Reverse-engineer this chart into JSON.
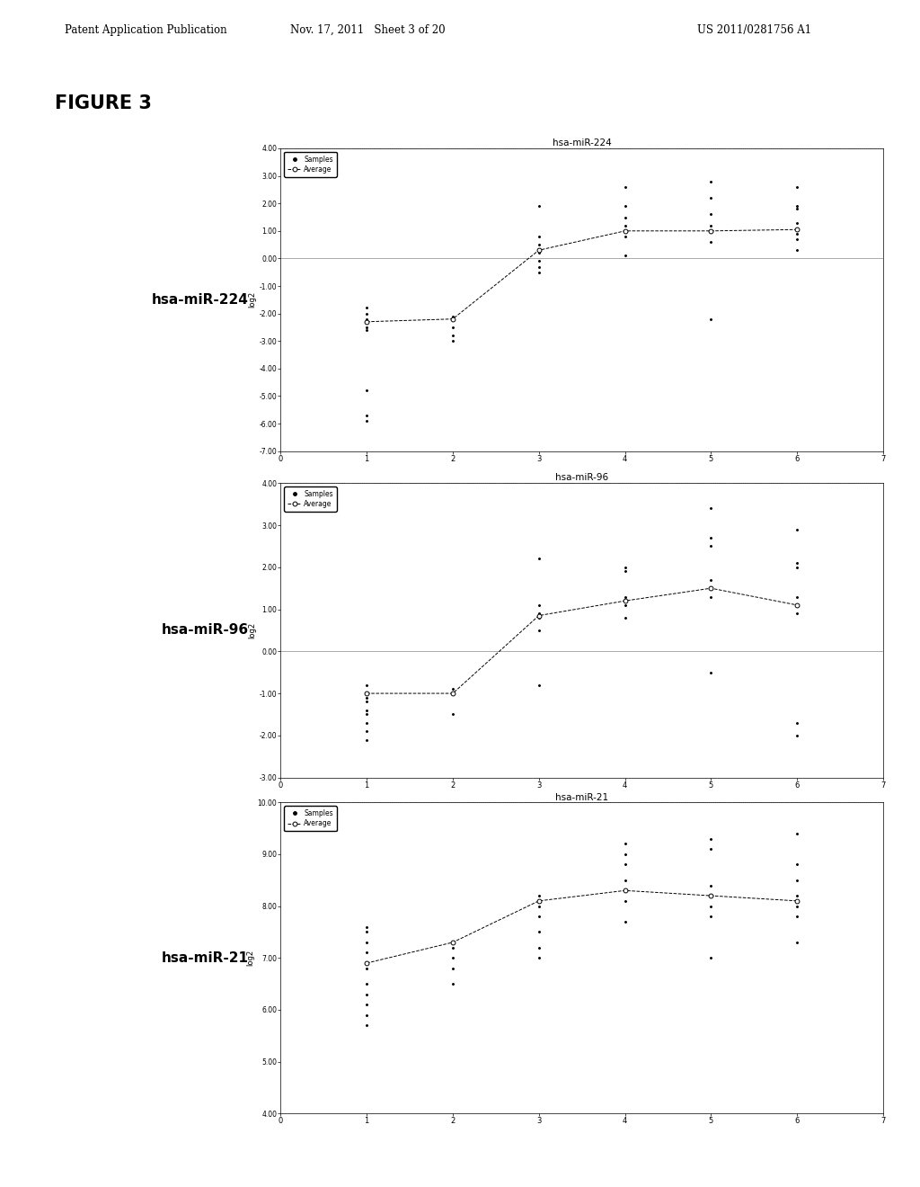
{
  "header_left": "Patent Application Publication",
  "header_middle": "Nov. 17, 2011   Sheet 3 of 20",
  "header_right": "US 2011/0281756 A1",
  "figure_label": "FIGURE 3",
  "background_color": "#ffffff",
  "charts": [
    {
      "title": "hsa-miR-224",
      "label": "hsa-miR-224",
      "ylabel": "log2",
      "ylim": [
        -7.0,
        4.0
      ],
      "yticks": [
        4.0,
        3.0,
        2.0,
        1.0,
        0.0,
        -1.0,
        -2.0,
        -3.0,
        -4.0,
        -5.0,
        -6.0,
        -7.0
      ],
      "ytick_labels": [
        "4.00",
        "3.00",
        "2.00",
        "1.00",
        "0.00",
        "-1.00",
        "-2.00",
        "-3.00",
        "-4.00",
        "-5.00",
        "-6.00",
        "-7.00"
      ],
      "xlim": [
        0,
        7
      ],
      "xticks": [
        0,
        1,
        2,
        3,
        4,
        5,
        6,
        7
      ],
      "avg_x": [
        1,
        2,
        3,
        4,
        5,
        6
      ],
      "avg_y": [
        -2.3,
        -2.2,
        0.3,
        1.0,
        1.0,
        1.05
      ],
      "scatter_data": [
        [
          1,
          -1.8
        ],
        [
          1,
          -2.0
        ],
        [
          1,
          -2.2
        ],
        [
          1,
          -2.3
        ],
        [
          1,
          -2.5
        ],
        [
          1,
          -2.6
        ],
        [
          1,
          -4.8
        ],
        [
          1,
          -5.7
        ],
        [
          1,
          -5.9
        ],
        [
          2,
          -2.1
        ],
        [
          2,
          -2.5
        ],
        [
          2,
          -3.0
        ],
        [
          2,
          -2.8
        ],
        [
          3,
          0.5
        ],
        [
          3,
          0.2
        ],
        [
          3,
          -0.1
        ],
        [
          3,
          -0.3
        ],
        [
          3,
          0.8
        ],
        [
          3,
          1.9
        ],
        [
          3,
          -0.5
        ],
        [
          4,
          0.8
        ],
        [
          4,
          1.0
        ],
        [
          4,
          1.2
        ],
        [
          4,
          1.5
        ],
        [
          4,
          2.6
        ],
        [
          4,
          1.9
        ],
        [
          4,
          0.1
        ],
        [
          5,
          0.6
        ],
        [
          5,
          1.0
        ],
        [
          5,
          1.2
        ],
        [
          5,
          2.8
        ],
        [
          5,
          2.2
        ],
        [
          5,
          1.6
        ],
        [
          5,
          -2.2
        ],
        [
          6,
          0.7
        ],
        [
          6,
          0.9
        ],
        [
          6,
          1.1
        ],
        [
          6,
          1.3
        ],
        [
          6,
          1.8
        ],
        [
          6,
          1.9
        ],
        [
          6,
          2.6
        ],
        [
          6,
          0.3
        ]
      ]
    },
    {
      "title": "hsa-miR-96",
      "label": "hsa-miR-96",
      "ylabel": "log2",
      "ylim": [
        -3.0,
        4.0
      ],
      "yticks": [
        4.0,
        3.0,
        2.0,
        1.0,
        0.0,
        -1.0,
        -2.0,
        -3.0
      ],
      "ytick_labels": [
        "4.00",
        "3.00",
        "2.00",
        "1.00",
        "0.00",
        "-1.00",
        "-2.00",
        "-3.00"
      ],
      "xlim": [
        0,
        7
      ],
      "xticks": [
        0,
        1,
        2,
        3,
        4,
        5,
        6,
        7
      ],
      "avg_x": [
        1,
        2,
        3,
        4,
        5,
        6
      ],
      "avg_y": [
        -1.0,
        -1.0,
        0.85,
        1.2,
        1.5,
        1.1
      ],
      "scatter_data": [
        [
          1,
          -0.8
        ],
        [
          1,
          -1.0
        ],
        [
          1,
          -1.1
        ],
        [
          1,
          -1.2
        ],
        [
          1,
          -1.4
        ],
        [
          1,
          -1.5
        ],
        [
          1,
          -1.7
        ],
        [
          1,
          -1.9
        ],
        [
          1,
          -2.1
        ],
        [
          2,
          -0.9
        ],
        [
          2,
          -1.0
        ],
        [
          2,
          -1.5
        ],
        [
          3,
          2.2
        ],
        [
          3,
          0.9
        ],
        [
          3,
          0.8
        ],
        [
          3,
          0.5
        ],
        [
          3,
          1.1
        ],
        [
          3,
          -0.8
        ],
        [
          4,
          1.1
        ],
        [
          4,
          1.2
        ],
        [
          4,
          1.3
        ],
        [
          4,
          1.9
        ],
        [
          4,
          2.0
        ],
        [
          4,
          0.8
        ],
        [
          5,
          1.3
        ],
        [
          5,
          1.5
        ],
        [
          5,
          1.7
        ],
        [
          5,
          2.7
        ],
        [
          5,
          3.4
        ],
        [
          5,
          2.5
        ],
        [
          5,
          -0.5
        ],
        [
          6,
          0.9
        ],
        [
          6,
          1.1
        ],
        [
          6,
          1.3
        ],
        [
          6,
          2.0
        ],
        [
          6,
          2.1
        ],
        [
          6,
          2.9
        ],
        [
          6,
          -1.7
        ],
        [
          6,
          -2.0
        ]
      ]
    },
    {
      "title": "hsa-miR-21",
      "label": "hsa-miR-21",
      "ylabel": "log2",
      "ylim": [
        4.0,
        10.0
      ],
      "yticks": [
        10.0,
        9.0,
        8.0,
        7.0,
        6.0,
        5.0,
        4.0
      ],
      "ytick_labels": [
        "10.00",
        "9.00",
        "8.00",
        "7.00",
        "6.00",
        "5.00",
        "4.00"
      ],
      "xlim": [
        0,
        7
      ],
      "xticks": [
        0,
        1,
        2,
        3,
        4,
        5,
        6,
        7
      ],
      "avg_x": [
        1,
        2,
        3,
        4,
        5,
        6
      ],
      "avg_y": [
        6.9,
        7.3,
        8.1,
        8.3,
        8.2,
        8.1
      ],
      "scatter_data": [
        [
          1,
          7.6
        ],
        [
          1,
          7.5
        ],
        [
          1,
          7.3
        ],
        [
          1,
          7.1
        ],
        [
          1,
          6.9
        ],
        [
          1,
          6.8
        ],
        [
          1,
          6.5
        ],
        [
          1,
          6.3
        ],
        [
          1,
          6.1
        ],
        [
          1,
          5.9
        ],
        [
          1,
          5.7
        ],
        [
          2,
          7.2
        ],
        [
          2,
          7.0
        ],
        [
          2,
          6.8
        ],
        [
          2,
          6.5
        ],
        [
          3,
          8.2
        ],
        [
          3,
          8.0
        ],
        [
          3,
          7.8
        ],
        [
          3,
          7.5
        ],
        [
          3,
          7.2
        ],
        [
          3,
          7.0
        ],
        [
          4,
          8.5
        ],
        [
          4,
          8.3
        ],
        [
          4,
          8.1
        ],
        [
          4,
          9.2
        ],
        [
          4,
          9.0
        ],
        [
          4,
          8.8
        ],
        [
          4,
          7.7
        ],
        [
          5,
          8.4
        ],
        [
          5,
          8.2
        ],
        [
          5,
          8.0
        ],
        [
          5,
          9.3
        ],
        [
          5,
          9.1
        ],
        [
          5,
          7.8
        ],
        [
          5,
          7.0
        ],
        [
          6,
          8.2
        ],
        [
          6,
          8.0
        ],
        [
          6,
          7.8
        ],
        [
          6,
          9.4
        ],
        [
          6,
          8.8
        ],
        [
          6,
          8.5
        ],
        [
          6,
          7.3
        ]
      ]
    }
  ]
}
